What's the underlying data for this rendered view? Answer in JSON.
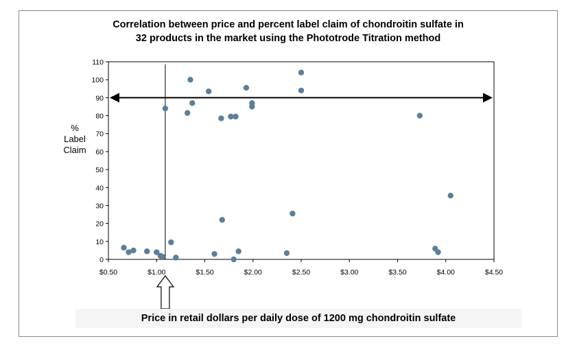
{
  "chart_data": {
    "type": "scatter",
    "title_lines": [
      "Correlation between price and percent label claim of chondroitin sulfate in",
      "32 products in the market using the Phototrode Titration method"
    ],
    "xlabel": "Price in retail dollars per daily dose of 1200 mg chondroitin sulfate",
    "ylabel_lines": [
      "%",
      "Label",
      "Claim"
    ],
    "xlim": [
      0.5,
      4.5
    ],
    "ylim": [
      0,
      110
    ],
    "x_ticks": [
      0.5,
      1.0,
      1.5,
      2.0,
      2.5,
      3.0,
      3.5,
      4.0,
      4.5
    ],
    "x_tick_labels": [
      "$0.50",
      "$1.00",
      "$1.50",
      "$2.00",
      "$2.50",
      "$3.00",
      "$3.50",
      "$4.00",
      "$4.50"
    ],
    "y_ticks": [
      0,
      10,
      20,
      30,
      40,
      50,
      60,
      70,
      80,
      90,
      100,
      110
    ],
    "y_tick_labels": [
      "0",
      "10",
      "20",
      "30",
      "40",
      "50",
      "60",
      "70",
      "80",
      "90",
      "100",
      "110"
    ],
    "grid": false,
    "point_color": "#5b7f9b",
    "reference_lines": {
      "horizontal_double_arrow_y": 90,
      "vertical_line_x": 1.09
    },
    "marker_arrow_x": 1.09,
    "points": [
      [
        0.66,
        6.5
      ],
      [
        0.71,
        4
      ],
      [
        0.76,
        5
      ],
      [
        0.9,
        4.5
      ],
      [
        1.0,
        4
      ],
      [
        1.04,
        2
      ],
      [
        1.09,
        84
      ],
      [
        1.15,
        9.5
      ],
      [
        1.2,
        1
      ],
      [
        1.32,
        81.5
      ],
      [
        1.35,
        100
      ],
      [
        1.37,
        87
      ],
      [
        1.54,
        93.5
      ],
      [
        1.6,
        3
      ],
      [
        1.67,
        78.5
      ],
      [
        1.68,
        22
      ],
      [
        1.77,
        79.5
      ],
      [
        1.8,
        0
      ],
      [
        1.82,
        79.5
      ],
      [
        1.85,
        4.5
      ],
      [
        1.93,
        95.5
      ],
      [
        1.99,
        87
      ],
      [
        1.99,
        85
      ],
      [
        2.35,
        3.5
      ],
      [
        2.41,
        25.5
      ],
      [
        2.5,
        104
      ],
      [
        2.5,
        94
      ],
      [
        3.73,
        80
      ],
      [
        3.89,
        6
      ],
      [
        3.92,
        4
      ],
      [
        4.05,
        35.5
      ],
      [
        1.06,
        1.5
      ]
    ]
  }
}
